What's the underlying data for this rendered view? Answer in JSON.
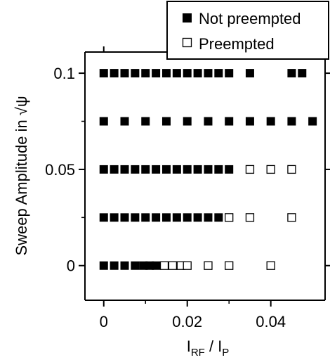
{
  "chart_data": {
    "type": "scatter",
    "xlabel_main": "I",
    "xlabel_sub1": "RF",
    "xlabel_sep": " / I",
    "xlabel_sub2": "P",
    "ylabel": "Sweep Amplitude in √ψ",
    "xlim": [
      -0.0045,
      0.053
    ],
    "ylim": [
      -0.018,
      0.111
    ],
    "xticks": [
      0,
      0.02,
      0.04
    ],
    "xtick_labels": [
      "0",
      "0.02",
      "0.04"
    ],
    "yticks": [
      0,
      0.05,
      0.1
    ],
    "ytick_labels": [
      "0",
      "0.05",
      "0.1"
    ],
    "legend_position": "top-right",
    "series": [
      {
        "name": "Not preempted",
        "marker": "filled-square",
        "color": "#000000",
        "points": [
          [
            0,
            0.1
          ],
          [
            0.0025,
            0.1
          ],
          [
            0.005,
            0.1
          ],
          [
            0.0075,
            0.1
          ],
          [
            0.01,
            0.1
          ],
          [
            0.0125,
            0.1
          ],
          [
            0.015,
            0.1
          ],
          [
            0.0175,
            0.1
          ],
          [
            0.02,
            0.1
          ],
          [
            0.0225,
            0.1
          ],
          [
            0.025,
            0.1
          ],
          [
            0.0275,
            0.1
          ],
          [
            0.03,
            0.1
          ],
          [
            0.035,
            0.1
          ],
          [
            0.045,
            0.1
          ],
          [
            0.0475,
            0.1
          ],
          [
            0,
            0.075
          ],
          [
            0.005,
            0.075
          ],
          [
            0.01,
            0.075
          ],
          [
            0.015,
            0.075
          ],
          [
            0.02,
            0.075
          ],
          [
            0.025,
            0.075
          ],
          [
            0.03,
            0.075
          ],
          [
            0.035,
            0.075
          ],
          [
            0.04,
            0.075
          ],
          [
            0.045,
            0.075
          ],
          [
            0.05,
            0.075
          ],
          [
            0,
            0.05
          ],
          [
            0.0025,
            0.05
          ],
          [
            0.005,
            0.05
          ],
          [
            0.0075,
            0.05
          ],
          [
            0.01,
            0.05
          ],
          [
            0.0125,
            0.05
          ],
          [
            0.015,
            0.05
          ],
          [
            0.0175,
            0.05
          ],
          [
            0.02,
            0.05
          ],
          [
            0.0225,
            0.05
          ],
          [
            0.025,
            0.05
          ],
          [
            0.0275,
            0.05
          ],
          [
            0.03,
            0.05
          ],
          [
            0,
            0.025
          ],
          [
            0.0025,
            0.025
          ],
          [
            0.005,
            0.025
          ],
          [
            0.0075,
            0.025
          ],
          [
            0.01,
            0.025
          ],
          [
            0.0125,
            0.025
          ],
          [
            0.015,
            0.025
          ],
          [
            0.0175,
            0.025
          ],
          [
            0.02,
            0.025
          ],
          [
            0.0225,
            0.025
          ],
          [
            0.025,
            0.025
          ],
          [
            0.0275,
            0.025
          ],
          [
            0,
            0
          ],
          [
            0.0025,
            0
          ],
          [
            0.005,
            0
          ],
          [
            0.0075,
            0
          ],
          [
            0.0095,
            0
          ],
          [
            0.011,
            0
          ],
          [
            0.0125,
            0
          ]
        ]
      },
      {
        "name": "Preempted",
        "marker": "open-square",
        "color": "#000000",
        "points": [
          [
            0.035,
            0.05
          ],
          [
            0.04,
            0.05
          ],
          [
            0.045,
            0.05
          ],
          [
            0.03,
            0.025
          ],
          [
            0.035,
            0.025
          ],
          [
            0.045,
            0.025
          ],
          [
            0.0145,
            0
          ],
          [
            0.0165,
            0
          ],
          [
            0.0185,
            0
          ],
          [
            0.02,
            0
          ],
          [
            0.025,
            0
          ],
          [
            0.03,
            0
          ],
          [
            0.04,
            0
          ]
        ]
      }
    ]
  }
}
